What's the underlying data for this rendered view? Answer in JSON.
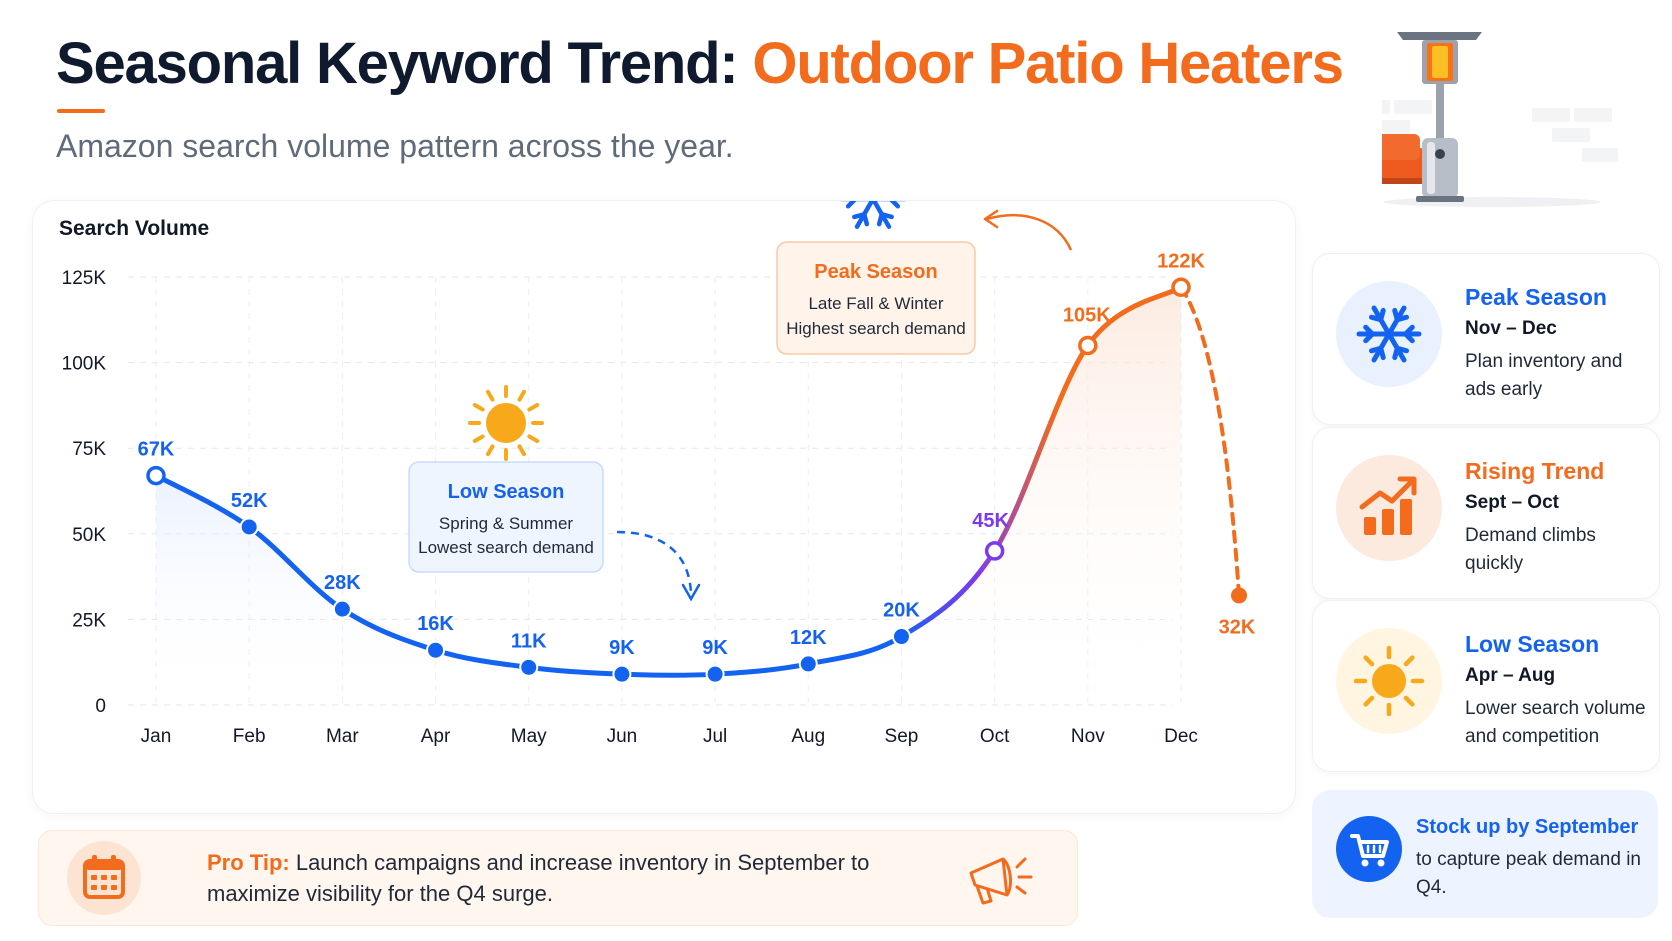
{
  "header": {
    "title_main": "Seasonal Keyword Trend: ",
    "title_accent": "Outdoor Patio Heaters",
    "subtitle": "Amazon search volume pattern across the year."
  },
  "colors": {
    "low": "#1463f0",
    "transition": "#7c3aed",
    "peak": "#f36b1c",
    "sun": "#f7a81b"
  },
  "chart_data": {
    "type": "line",
    "ylabel": "Search Volume",
    "ylim": [
      0,
      125000
    ],
    "yticks": [
      {
        "value": 125000,
        "label": "125K"
      },
      {
        "value": 100000,
        "label": "100K"
      },
      {
        "value": 75000,
        "label": "75K"
      },
      {
        "value": 50000,
        "label": "50K"
      },
      {
        "value": 25000,
        "label": "25K"
      },
      {
        "value": 0,
        "label": "0"
      }
    ],
    "categories": [
      "Jan",
      "Feb",
      "Mar",
      "Apr",
      "May",
      "Jun",
      "Jul",
      "Aug",
      "Sep",
      "Oct",
      "Nov",
      "Dec"
    ],
    "series": [
      {
        "values": [
          67000,
          52000,
          28000,
          16000,
          11000,
          9000,
          9000,
          12000,
          20000,
          45000,
          105000,
          122000
        ],
        "labels": [
          "67K",
          "52K",
          "28K",
          "16K",
          "11K",
          "9K",
          "9K",
          "12K",
          "20K",
          "45K",
          "105K",
          "122K"
        ]
      }
    ],
    "drop_point": {
      "value": 32000,
      "label": "32K"
    },
    "grid": true,
    "annotations": [
      {
        "title": "Low Season",
        "line1": "Spring & Summer",
        "line2": "Lowest search demand",
        "icon": "sun-icon"
      },
      {
        "title": "Peak Season",
        "line1": "Late Fall & Winter",
        "line2": "Highest search demand",
        "icon": "snowflake-icon"
      }
    ]
  },
  "tip": {
    "lead": "Pro Tip:",
    "text": " Launch campaigns and increase inventory in September to maximize visibility for the Q4 surge."
  },
  "sidebar": {
    "cards": [
      {
        "title": "Peak Season",
        "range": "Nov – Dec",
        "desc": "Plan inventory and ads early",
        "icon": "snowflake-icon",
        "color": "#1463f0"
      },
      {
        "title": "Rising Trend",
        "range": "Sept – Oct",
        "desc": "Demand climbs quickly",
        "icon": "bar-chart-trend-icon",
        "color": "#f36b1c"
      },
      {
        "title": "Low Season",
        "range": "Apr – Aug",
        "desc": "Lower search volume and competition",
        "icon": "sun-icon",
        "color": "#1463f0"
      }
    ],
    "stock": {
      "title": "Stock up by September",
      "desc": "to capture peak demand in Q4.",
      "icon": "shopping-cart-icon"
    }
  }
}
